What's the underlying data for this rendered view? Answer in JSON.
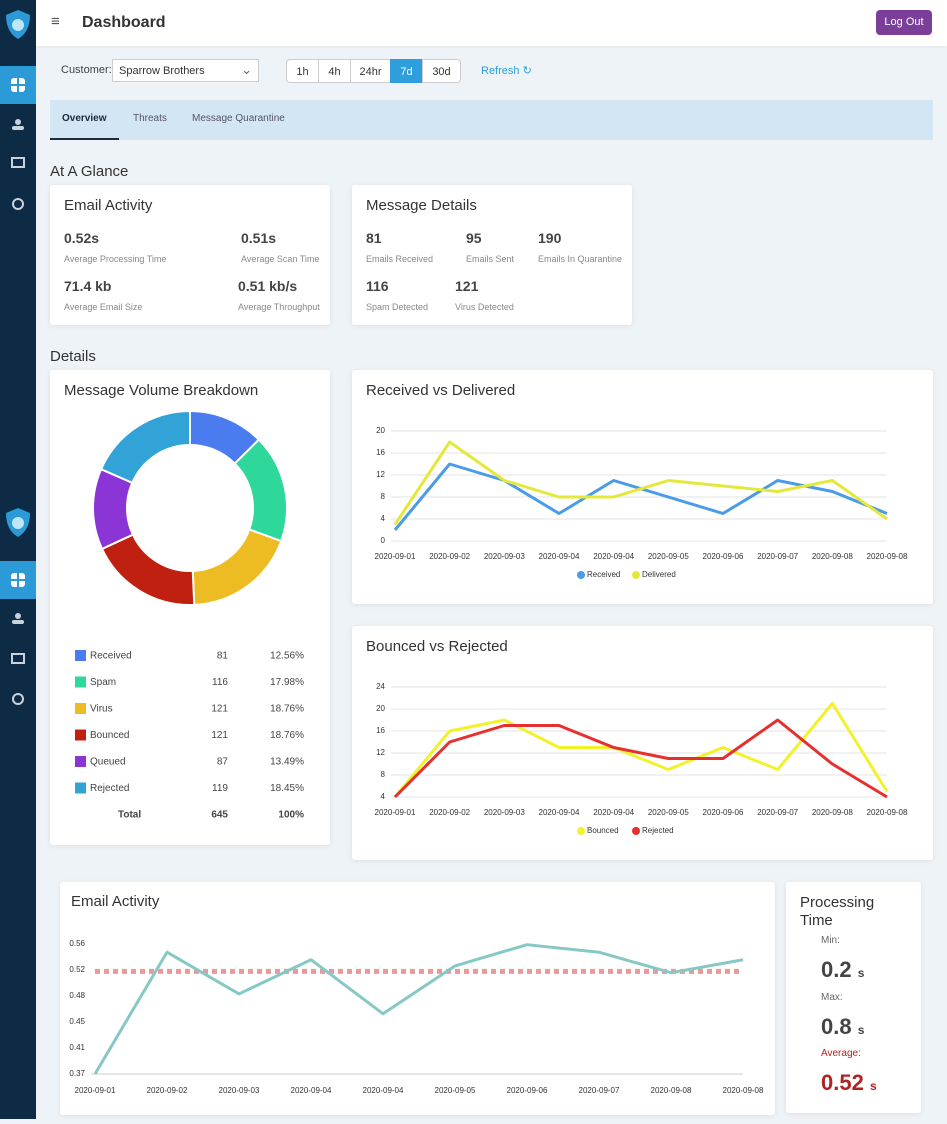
{
  "header": {
    "title": "Dashboard",
    "logout": "Log Out"
  },
  "filters": {
    "customer_label": "Customer:",
    "customer": "Sparrow Brothers",
    "ranges": [
      "1h",
      "4h",
      "24hr",
      "7d",
      "30d"
    ],
    "active_range": "7d",
    "refresh": "Refresh"
  },
  "tabs": {
    "items": [
      "Overview",
      "Threats",
      "Message Quarantine"
    ],
    "active": "Overview"
  },
  "glance": {
    "title": "At A Glance",
    "email_activity": {
      "title": "Email Activity",
      "stats": [
        {
          "value": "0.52s",
          "label": "Average Processing Time"
        },
        {
          "value": "0.51s",
          "label": "Average Scan Time"
        },
        {
          "value": "71.4 kb",
          "label": "Average Email Size"
        },
        {
          "value": "0.51 kb/s",
          "label": "Average Throughput"
        }
      ]
    },
    "message_details": {
      "title": "Message Details",
      "stats": [
        {
          "value": 81,
          "label": "Emails Received"
        },
        {
          "value": 95,
          "label": "Emails Sent"
        },
        {
          "value": 190,
          "label": "Emails In Quarantine"
        },
        {
          "value": 116,
          "label": "Spam Detected"
        },
        {
          "value": 121,
          "label": "Virus Detected"
        }
      ]
    }
  },
  "details": {
    "title": "Details",
    "volume": {
      "type": "pie",
      "donut": true,
      "title": "Message Volume Breakdown",
      "categories": [
        "Received",
        "Spam",
        "Virus",
        "Bounced",
        "Queued",
        "Rejected"
      ],
      "values": [
        81,
        116,
        121,
        121,
        87,
        119
      ],
      "colors": [
        "#4a7cf0",
        "#2ed79a",
        "#edbb22",
        "#c0200f",
        "#8b35d6",
        "#32a3d6"
      ],
      "percent_labels": [
        "12.56%",
        "17.98%",
        "18.76%",
        "18.76%",
        "13.49%",
        "18.45%"
      ],
      "total_label": "Total",
      "total": 645,
      "total_percent": "100%"
    },
    "received_vs_delivered": {
      "type": "line",
      "title": "Received vs Delivered",
      "categories": [
        "2020-09-01",
        "2020-09-02",
        "2020-09-03",
        "2020-09-04",
        "2020-09-04",
        "2020-09-05",
        "2020-09-06",
        "2020-09-07",
        "2020-09-08",
        "2020-09-08"
      ],
      "series": [
        {
          "name": "Received",
          "color": "#4a9be8",
          "values": [
            2,
            14,
            11,
            5,
            11,
            8,
            5,
            11,
            9,
            5
          ]
        },
        {
          "name": "Delivered",
          "color": "#e4e83a",
          "values": [
            3,
            18,
            11,
            8,
            8,
            11,
            10,
            9,
            11,
            4
          ]
        }
      ],
      "ylim": [
        0,
        20
      ],
      "yticks": [
        0,
        4,
        8,
        12,
        16,
        20
      ],
      "grid": true
    },
    "bounced_vs_rejected": {
      "type": "line",
      "title": "Bounced vs Rejected",
      "categories": [
        "2020-09-01",
        "2020-09-02",
        "2020-09-03",
        "2020-09-04",
        "2020-09-04",
        "2020-09-05",
        "2020-09-06",
        "2020-09-07",
        "2020-09-08",
        "2020-09-08"
      ],
      "series": [
        {
          "name": "Bounced",
          "color": "#f2f22a",
          "values": [
            4,
            16,
            18,
            13,
            13,
            9,
            13,
            9,
            21,
            5
          ]
        },
        {
          "name": "Rejected",
          "color": "#e53030",
          "values": [
            4,
            14,
            17,
            17,
            13,
            11,
            11,
            18,
            10,
            4
          ]
        }
      ],
      "ylim": [
        4,
        24
      ],
      "yticks": [
        4,
        8,
        12,
        16,
        20,
        24
      ],
      "grid": true
    }
  },
  "activity": {
    "chart": {
      "type": "line",
      "title": "Email Activity",
      "categories": [
        "2020-09-01",
        "2020-09-02",
        "2020-09-03",
        "2020-09-04",
        "2020-09-04",
        "2020-09-05",
        "2020-09-06",
        "2020-09-07",
        "2020-09-08",
        "2020-09-08"
      ],
      "series": [
        {
          "color": "#86c8c6",
          "values": [
            0.37,
            0.548,
            0.487,
            0.537,
            0.458,
            0.528,
            0.559,
            0.548,
            0.518,
            0.537
          ]
        }
      ],
      "average": 0.52,
      "average_color": "#e89a9a",
      "ylim": [
        0.37,
        0.56
      ],
      "yticks": [
        {
          "value": 0.37,
          "label": "0.37"
        },
        {
          "value": 0.408,
          "label": "0.41"
        },
        {
          "value": 0.446,
          "label": "0.45"
        },
        {
          "value": 0.484,
          "label": "0.48"
        },
        {
          "value": 0.522,
          "label": "0.52"
        },
        {
          "value": 0.56,
          "label": "0.56"
        }
      ],
      "grid": false
    },
    "processing": {
      "title": "Processing Time",
      "min_label": "Min:",
      "min": 0.2,
      "max_label": "Max:",
      "max": 0.8,
      "average_label": "Average:",
      "average": 0.52,
      "unit": "s"
    }
  }
}
